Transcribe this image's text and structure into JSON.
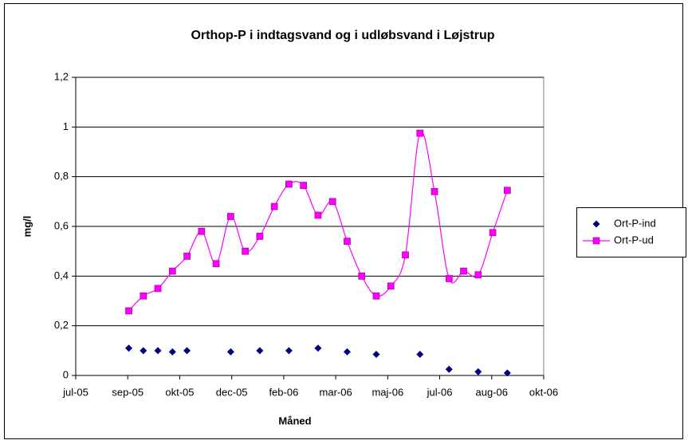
{
  "chart_data": {
    "type": "line",
    "title": "Orthop-P i indtagsvand og i udløbsvand i Løjstrup",
    "x_label": "Måned",
    "y_label": "mg/l",
    "xlim": [
      38553,
      39003
    ],
    "xticks": [
      {
        "value": 38553,
        "label": "jul-05"
      },
      {
        "value": 38603,
        "label": "sep-05"
      },
      {
        "value": 38653,
        "label": "okt-05"
      },
      {
        "value": 38703,
        "label": "dec-05"
      },
      {
        "value": 38753,
        "label": "feb-06"
      },
      {
        "value": 38803,
        "label": "mar-06"
      },
      {
        "value": 38853,
        "label": "maj-06"
      },
      {
        "value": 38903,
        "label": "jul-06"
      },
      {
        "value": 38953,
        "label": "aug-06"
      },
      {
        "value": 39003,
        "label": "okt-06"
      }
    ],
    "ylim": [
      0,
      1.2
    ],
    "yticks": [
      0,
      {
        "value": 0.2,
        "label": "0,2"
      },
      {
        "value": 0.4,
        "label": "0,4"
      },
      {
        "value": 0.6,
        "label": "0,6"
      },
      {
        "value": 0.8,
        "label": "0,8"
      },
      1,
      {
        "value": 1.2,
        "label": "1,2"
      }
    ],
    "grid": true,
    "legend": "right",
    "series": [
      {
        "name": "Ort-P-ind",
        "color": "#000080",
        "marker": "diamond",
        "line": false,
        "x": [
          38604,
          38618,
          38632,
          38646,
          38660,
          38702,
          38730,
          38758,
          38786,
          38814,
          38842,
          38884,
          38912,
          38940,
          38968
        ],
        "values": [
          0.11,
          0.1,
          0.1,
          0.095,
          0.1,
          0.095,
          0.1,
          0.1,
          0.11,
          0.095,
          0.085,
          0.085,
          0.025,
          0.015,
          0.01
        ]
      },
      {
        "name": "Ort-P-ud",
        "color": "#FF00FF",
        "marker": "square",
        "line": true,
        "x": [
          38604,
          38618,
          38632,
          38646,
          38660,
          38674,
          38688,
          38702,
          38716,
          38730,
          38744,
          38758,
          38772,
          38786,
          38800,
          38814,
          38828,
          38842,
          38856,
          38870,
          38884,
          38898,
          38912,
          38926,
          38940,
          38954,
          38968
        ],
        "values": [
          0.26,
          0.32,
          0.35,
          0.42,
          0.48,
          0.58,
          0.45,
          0.64,
          0.5,
          0.56,
          0.68,
          0.77,
          0.765,
          0.645,
          0.7,
          0.54,
          0.4,
          0.32,
          0.36,
          0.485,
          0.975,
          0.74,
          0.39,
          0.42,
          0.405,
          0.575,
          0.745
        ]
      }
    ]
  }
}
